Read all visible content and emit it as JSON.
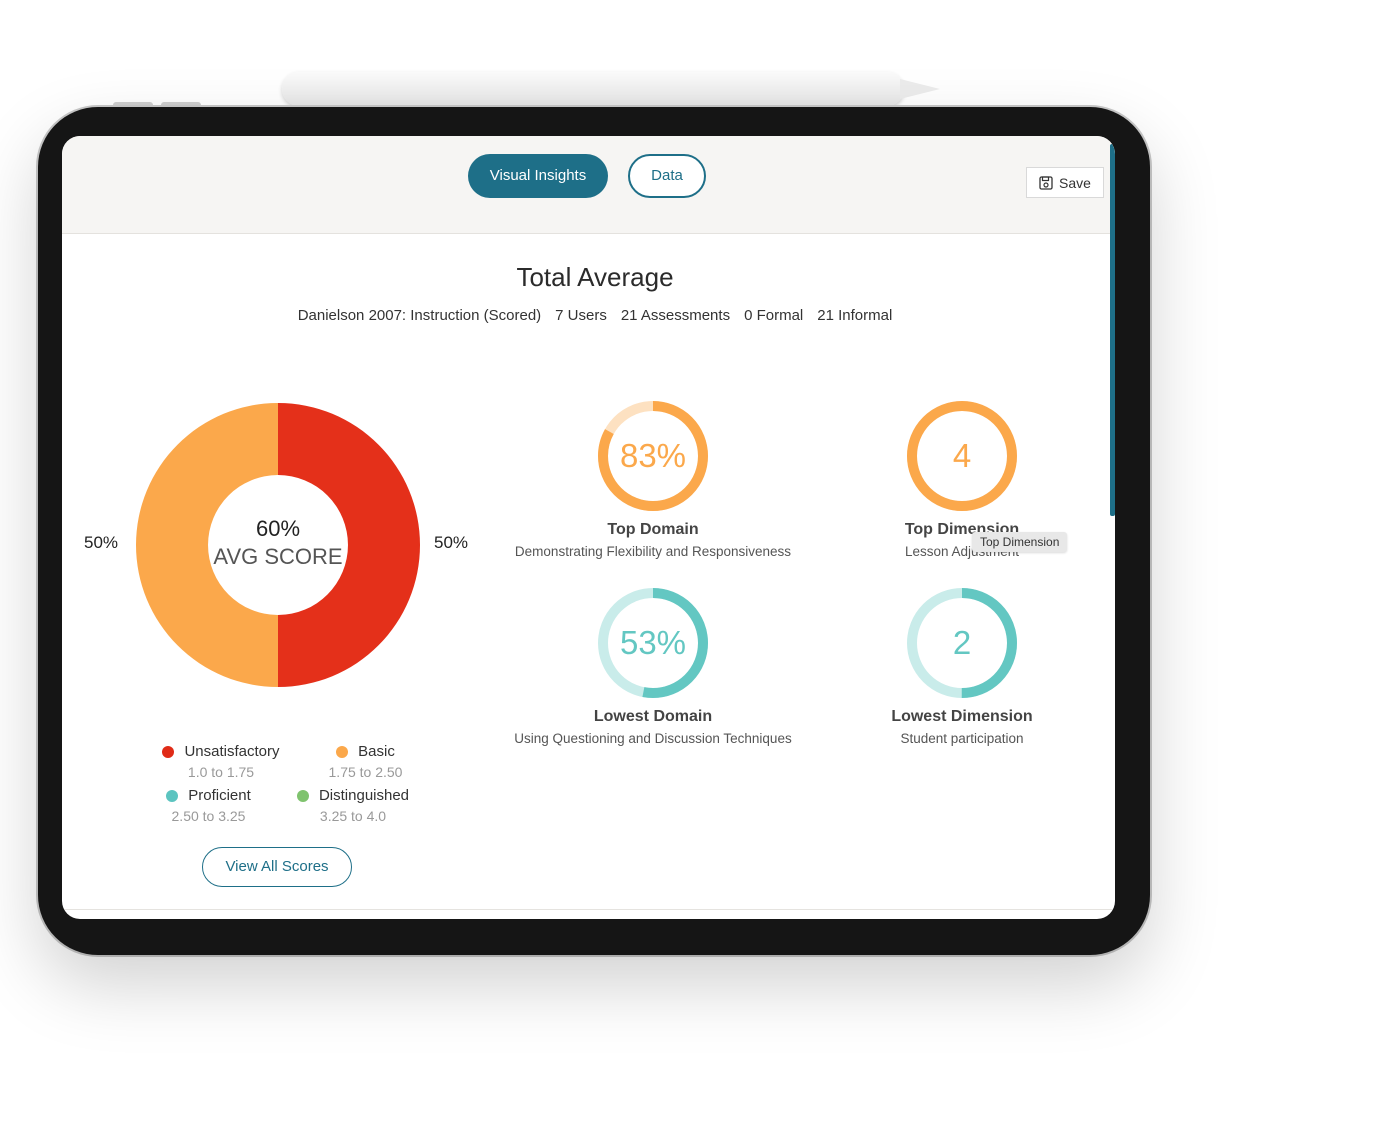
{
  "tabs": {
    "visual_insights": "Visual Insights",
    "data": "Data"
  },
  "save_label": "Save",
  "header": {
    "title": "Total Average"
  },
  "meta": {
    "framework": "Danielson 2007: Instruction (Scored)",
    "users": "7 Users",
    "assessments": "21 Assessments",
    "formal": "0 Formal",
    "informal": "21 Informal"
  },
  "donut": {
    "value": "60%",
    "label": "AVG SCORE",
    "left_pct": "50%",
    "right_pct": "50%",
    "segments": [
      {
        "name": "Unsatisfactory",
        "percent": 50,
        "color": "#e4301a"
      },
      {
        "name": "Basic",
        "percent": 50,
        "color": "#fba84b"
      }
    ]
  },
  "legend": [
    {
      "label": "Unsatisfactory",
      "range": "1.0 to 1.75",
      "color": "#e02b17"
    },
    {
      "label": "Basic",
      "range": "1.75 to 2.50",
      "color": "#fba84b"
    },
    {
      "label": "Proficient",
      "range": "2.50 to 3.25",
      "color": "#5cc4c0"
    },
    {
      "label": "Distinguished",
      "range": "3.25 to 4.0",
      "color": "#7fc36e"
    }
  ],
  "view_all_label": "View All Scores",
  "metrics": {
    "top_domain": {
      "value": "83%",
      "fill": 0.83,
      "title": "Top Domain",
      "subtitle": "Demonstrating Flexibility and Responsiveness",
      "color": "#fba84b",
      "track": "#fde1c1"
    },
    "top_dimension": {
      "value": "4",
      "fill": 1.0,
      "title": "Top Dimension",
      "subtitle": "Lesson Adjustment",
      "color": "#fba84b",
      "track": "#fde1c1"
    },
    "lowest_domain": {
      "value": "53%",
      "fill": 0.53,
      "title": "Lowest Domain",
      "subtitle": "Using Questioning and Discussion Techniques",
      "color": "#63c7c2",
      "track": "#c9ecea"
    },
    "lowest_dimension": {
      "value": "2",
      "fill": 0.5,
      "title": "Lowest Dimension",
      "subtitle": "Student participation",
      "color": "#63c7c2",
      "track": "#c9ecea"
    }
  },
  "tooltip": "Top Dimension"
}
